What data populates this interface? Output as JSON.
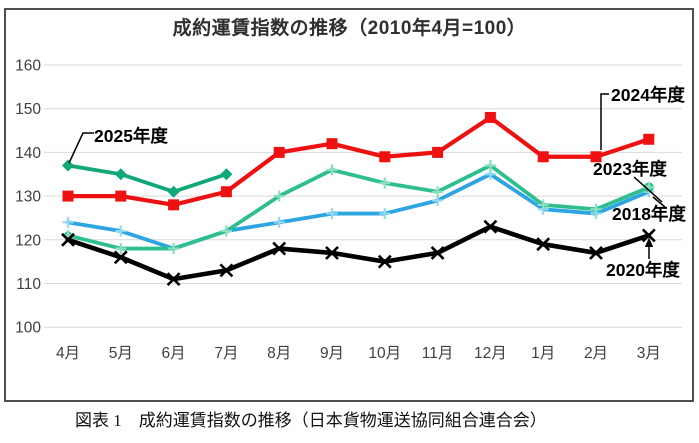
{
  "chart_data": {
    "type": "line",
    "title": "成約運賃指数の推移（2010年4月=100）",
    "caption": "図表 1　成約運賃指数の推移（日本貨物運送協同組合連合会）",
    "xlabel": "",
    "ylabel": "",
    "categories": [
      "4月",
      "5月",
      "6月",
      "7月",
      "8月",
      "9月",
      "10月",
      "11月",
      "12月",
      "1月",
      "2月",
      "3月"
    ],
    "ylim": [
      100,
      160
    ],
    "yticks": [
      100,
      110,
      120,
      130,
      140,
      150,
      160
    ],
    "grid": "horizontal",
    "legend": "inline-callout-labels",
    "series": [
      {
        "name": "2025年度",
        "color": "#10A878",
        "marker": "diamond",
        "marker_color": "#10A878",
        "values": [
          137,
          135,
          131,
          135,
          null,
          null,
          null,
          null,
          null,
          null,
          null,
          null
        ]
      },
      {
        "name": "2024年度",
        "color": "#EE1111",
        "marker": "square",
        "marker_color": "#EE1111",
        "values": [
          130,
          130,
          128,
          131,
          140,
          142,
          139,
          140,
          148,
          139,
          139,
          143
        ]
      },
      {
        "name": "2023年度",
        "color": "#2FBE8E",
        "marker": "plus",
        "marker_color": "#8ADFC1",
        "values": [
          121,
          118,
          118,
          122,
          130,
          136,
          133,
          131,
          137,
          128,
          127,
          132
        ]
      },
      {
        "name": "2018年度",
        "color": "#2CA5E0",
        "marker": "plus",
        "marker_color": "#92DAF4",
        "values": [
          124,
          122,
          118,
          122,
          124,
          126,
          126,
          129,
          135,
          127,
          126,
          131
        ]
      },
      {
        "name": "2020年度",
        "color": "#000000",
        "marker": "x",
        "marker_color": "#000000",
        "values": [
          120,
          116,
          111,
          113,
          118,
          117,
          115,
          117,
          123,
          119,
          117,
          121
        ]
      }
    ],
    "colors": {
      "gridline": "#D9D9D9",
      "frame": "#4f4f4f",
      "tick_text": "#404040",
      "annotation_text": "#000000",
      "leader_line": "#000000"
    }
  }
}
